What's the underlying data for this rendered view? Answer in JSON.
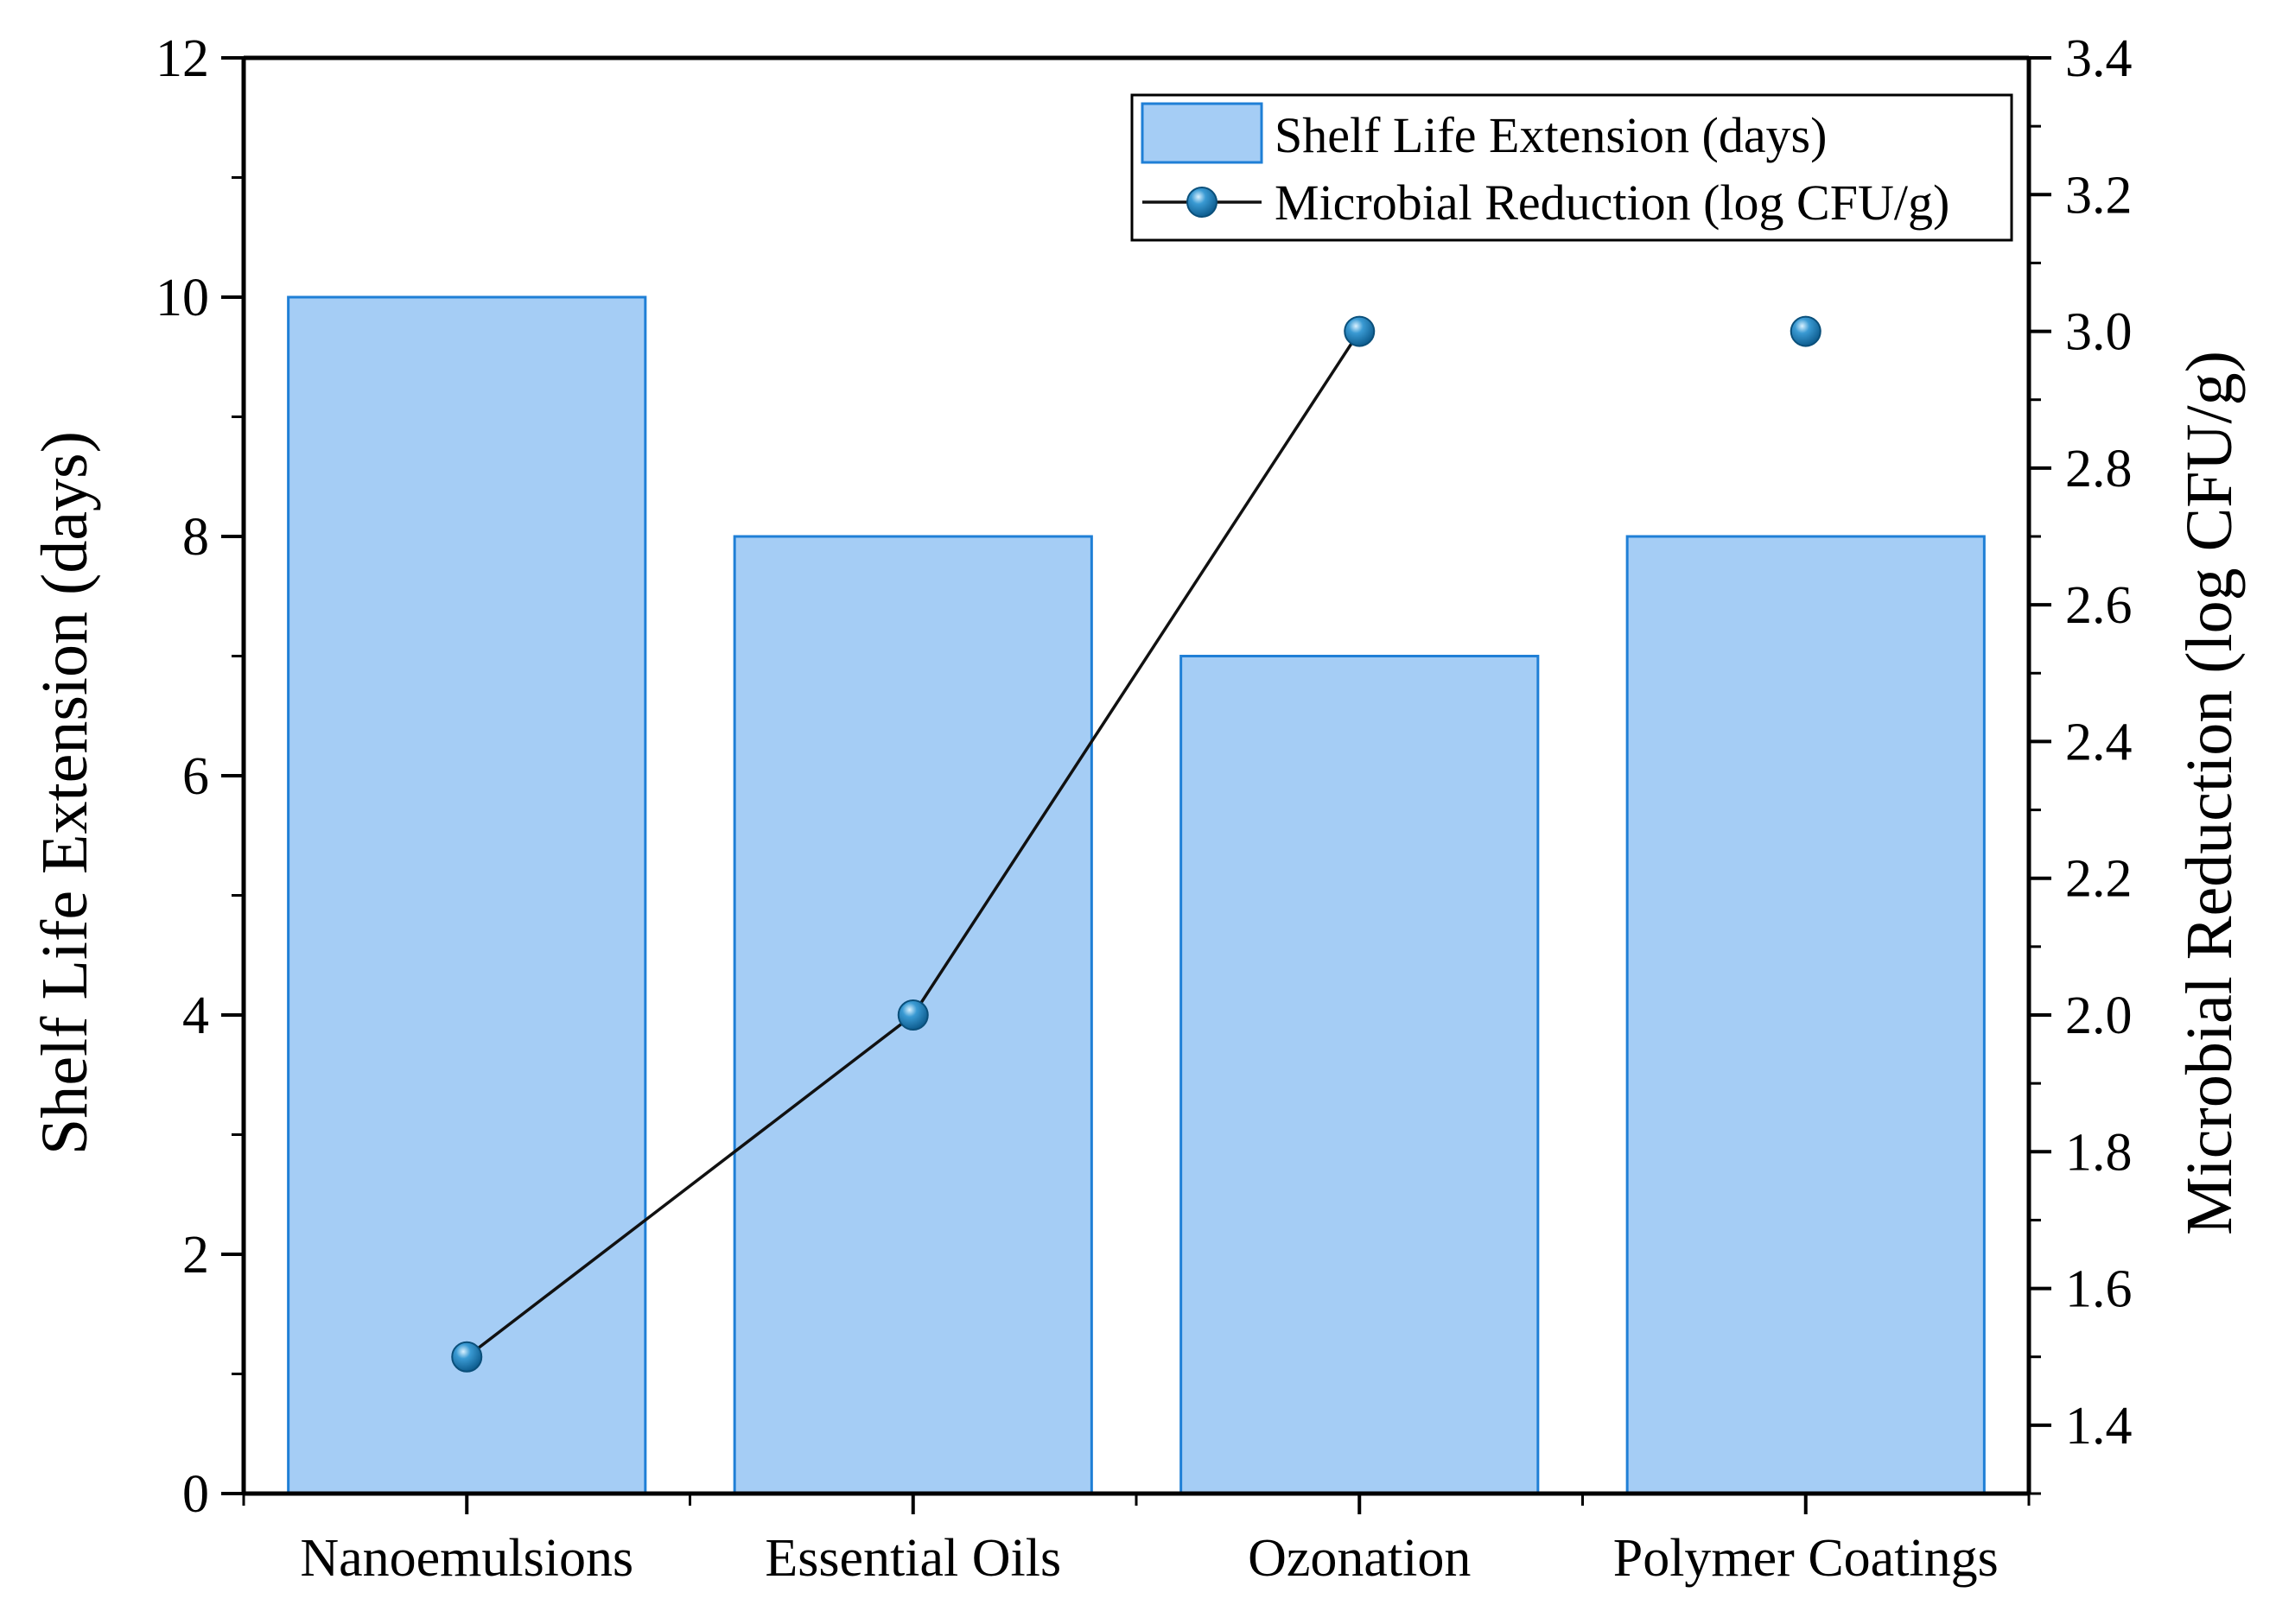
{
  "chart_data": {
    "type": "bar+line",
    "categories": [
      "Nanoemulsions",
      "Essential Oils",
      "Ozonation",
      "Polymer Coatings"
    ],
    "series": [
      {
        "name": "Shelf Life Extension (days)",
        "type": "bar",
        "axis": "left",
        "values": [
          10,
          8,
          7,
          8
        ],
        "color": "#a5cdf5",
        "edge_color": "#1f7fd6"
      },
      {
        "name": "Microbial Reduction (log CFU/g)",
        "type": "line",
        "axis": "right",
        "values": [
          1.5,
          2.0,
          3.0,
          3.0
        ],
        "color": "#111111",
        "marker_color": "#1a78b0",
        "connected_points": 3
      }
    ],
    "y_left": {
      "label": "Shelf Life Extension (days)",
      "ylim": [
        0,
        12
      ],
      "ticks": [
        "0",
        "2",
        "4",
        "6",
        "8",
        "10",
        "12"
      ]
    },
    "y_right": {
      "label": "Microbial Reduction (log CFU/g)",
      "ylim": [
        1.3,
        3.4
      ],
      "ticks": [
        "1.4",
        "1.6",
        "1.8",
        "2.0",
        "2.2",
        "2.4",
        "2.6",
        "2.8",
        "3.0",
        "3.2",
        "3.4"
      ]
    },
    "legend": {
      "position": "top-right",
      "items": [
        "Shelf Life Extension (days)",
        "Microbial Reduction (log CFU/g)"
      ]
    },
    "grid": false
  }
}
